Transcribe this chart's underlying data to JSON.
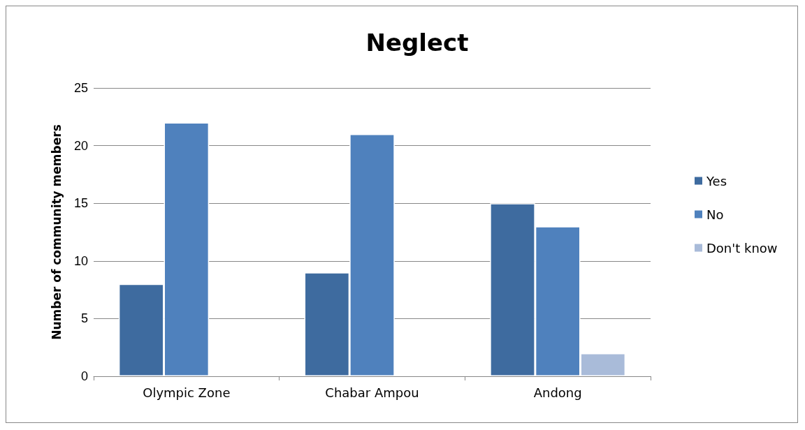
{
  "chart_data": {
    "type": "bar",
    "title": "Neglect",
    "ylabel": "Number of community members",
    "categories": [
      "Olympic Zone",
      "Chabar Ampou",
      "Andong"
    ],
    "series": [
      {
        "name": "Yes",
        "color": "#3e6b9f",
        "values": [
          8,
          9,
          15
        ]
      },
      {
        "name": "No",
        "color": "#4f81bd",
        "values": [
          22,
          21,
          13
        ]
      },
      {
        "name": "Don't know",
        "color": "#a9bbd9",
        "values": [
          null,
          null,
          2
        ]
      }
    ],
    "ylim": [
      0,
      25
    ],
    "yticks": [
      0,
      5,
      10,
      15,
      20,
      25
    ],
    "grid": "y",
    "legend": "right"
  }
}
